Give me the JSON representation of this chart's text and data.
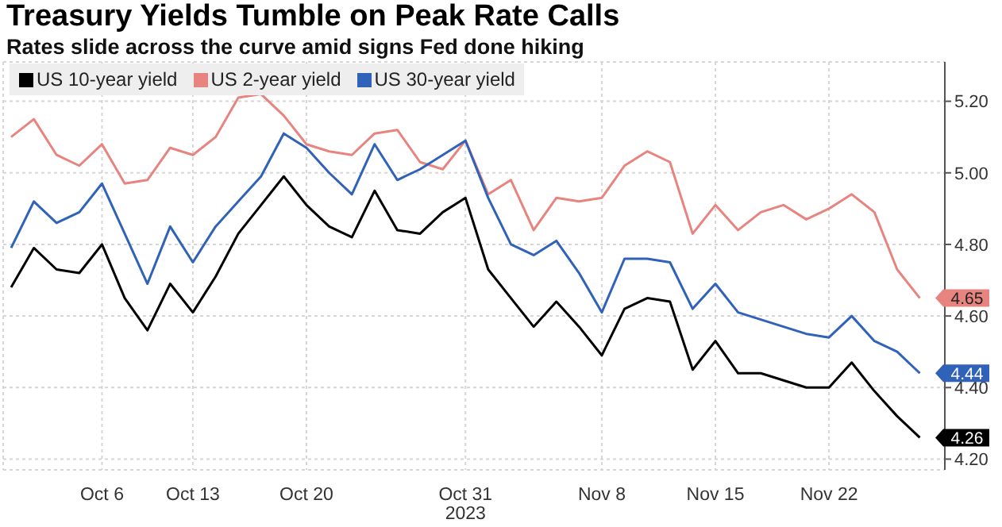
{
  "chart_data": {
    "type": "line",
    "title": "Treasury Yields Tumble on Peak Rate Calls",
    "subtitle": "Rates slide across the curve amid signs Fed done hiking",
    "categories": [
      null,
      null,
      null,
      null,
      "Oct 6",
      null,
      null,
      null,
      "Oct 13",
      null,
      null,
      null,
      null,
      "Oct 20",
      null,
      null,
      null,
      null,
      null,
      null,
      "Oct 31\n2023",
      null,
      null,
      null,
      null,
      null,
      "Nov 8",
      null,
      null,
      null,
      null,
      "Nov 15",
      null,
      null,
      null,
      null,
      "Nov 22",
      null,
      null,
      null,
      null
    ],
    "series": [
      {
        "name": "US 10-year yield",
        "color": "#000000",
        "values": [
          4.68,
          4.79,
          4.73,
          4.72,
          4.8,
          4.65,
          4.56,
          4.69,
          4.61,
          4.71,
          4.83,
          4.91,
          4.99,
          4.91,
          4.85,
          4.82,
          4.95,
          4.84,
          4.83,
          4.89,
          4.93,
          4.73,
          4.65,
          4.57,
          4.64,
          4.57,
          4.49,
          4.62,
          4.65,
          4.64,
          4.45,
          4.53,
          4.44,
          4.44,
          4.42,
          4.4,
          4.4,
          4.47,
          4.39,
          4.32,
          4.26
        ],
        "value_labels": [
          null,
          null,
          null,
          null,
          null,
          null,
          null,
          null,
          null,
          null,
          null,
          null,
          null,
          null,
          null,
          null,
          null,
          null,
          null,
          null,
          null,
          null,
          null,
          null,
          null,
          null,
          null,
          null,
          null,
          null,
          null,
          null,
          null,
          null,
          null,
          null,
          null,
          null,
          null,
          null,
          "4.26"
        ]
      },
      {
        "name": "US 2-year yield",
        "color": "#e8847f",
        "values": [
          5.1,
          5.15,
          5.05,
          5.02,
          5.08,
          4.97,
          4.98,
          5.07,
          5.05,
          5.1,
          5.21,
          5.22,
          5.16,
          5.08,
          5.06,
          5.05,
          5.11,
          5.12,
          5.03,
          5.01,
          5.09,
          4.94,
          4.98,
          4.84,
          4.93,
          4.92,
          4.93,
          5.02,
          5.06,
          5.03,
          4.83,
          4.91,
          4.84,
          4.89,
          4.91,
          4.87,
          4.9,
          4.94,
          4.89,
          4.73,
          4.65
        ],
        "value_labels": [
          null,
          null,
          null,
          null,
          null,
          null,
          null,
          null,
          null,
          null,
          null,
          null,
          null,
          null,
          null,
          null,
          null,
          null,
          null,
          null,
          null,
          null,
          null,
          null,
          null,
          null,
          null,
          null,
          null,
          null,
          null,
          null,
          null,
          null,
          null,
          null,
          null,
          null,
          null,
          null,
          "4.65"
        ]
      },
      {
        "name": "US 30-year yield",
        "color": "#2f62b8",
        "values": [
          4.79,
          4.92,
          4.86,
          4.89,
          4.97,
          4.83,
          4.69,
          4.85,
          4.75,
          4.85,
          4.92,
          4.99,
          5.11,
          5.07,
          5.0,
          4.94,
          5.08,
          4.98,
          5.01,
          5.05,
          5.09,
          4.93,
          4.8,
          4.77,
          4.81,
          4.72,
          4.61,
          4.76,
          4.76,
          4.75,
          4.62,
          4.69,
          4.61,
          4.59,
          4.57,
          4.55,
          4.54,
          4.6,
          4.53,
          4.5,
          4.44
        ],
        "value_labels": [
          null,
          null,
          null,
          null,
          null,
          null,
          null,
          null,
          null,
          null,
          null,
          null,
          null,
          null,
          null,
          null,
          null,
          null,
          null,
          null,
          null,
          null,
          null,
          null,
          null,
          null,
          null,
          null,
          null,
          null,
          null,
          null,
          null,
          null,
          null,
          null,
          null,
          null,
          null,
          null,
          "4.44"
        ]
      }
    ],
    "ylim": [
      4.17,
      5.31
    ],
    "yticks": [
      {
        "value": 4.2,
        "label": "4.20"
      },
      {
        "value": 4.4,
        "label": "4.40"
      },
      {
        "value": 4.6,
        "label": "4.60"
      },
      {
        "value": 4.8,
        "label": "4.80"
      },
      {
        "value": 5.0,
        "label": "5.00"
      },
      {
        "value": 5.2,
        "label": "5.20"
      }
    ],
    "grid": true,
    "legend": "top left",
    "marker": "none",
    "line_style": "solid"
  }
}
